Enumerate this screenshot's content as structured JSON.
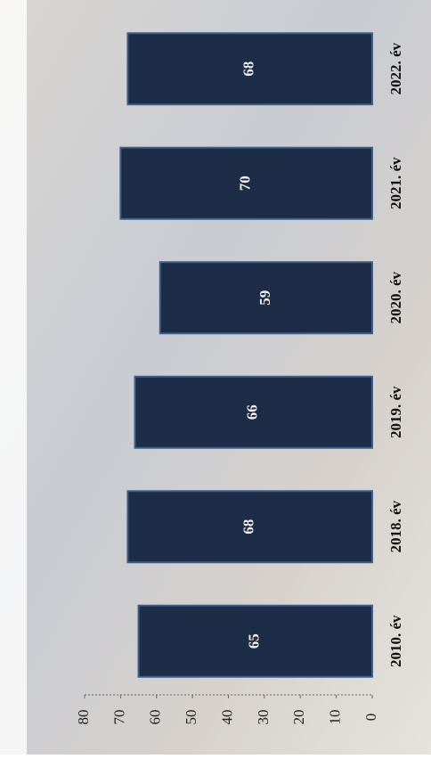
{
  "chart_data": {
    "type": "bar",
    "categories": [
      "2010. év",
      "2018. év",
      "2019. év",
      "2020. év",
      "2021. év",
      "2022. év"
    ],
    "values": [
      65,
      68,
      66,
      59,
      70,
      68
    ],
    "color": "#1d2c47",
    "ylim": [
      0,
      80
    ],
    "yticks": [
      0,
      10,
      20,
      30,
      40,
      50,
      60,
      70,
      80
    ],
    "grid": false
  }
}
